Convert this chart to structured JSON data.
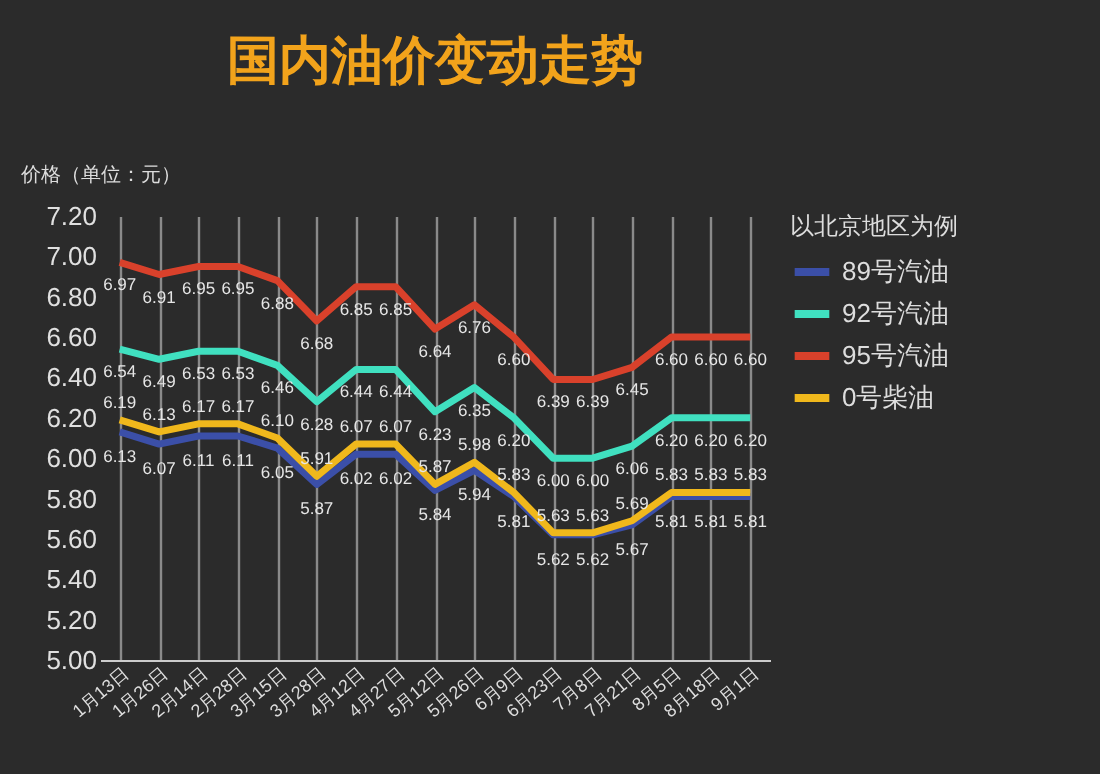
{
  "chart_data": {
    "type": "line",
    "title": "国内油价变动走势",
    "ylabel": "价格（单位：元）",
    "legend_title": "以北京地区为例",
    "categories": [
      "1月13日",
      "1月26日",
      "2月14日",
      "2月28日",
      "3月15日",
      "3月28日",
      "4月12日",
      "4月27日",
      "5月12日",
      "5月26日",
      "6月9日",
      "6月23日",
      "7月8日",
      "7月21日",
      "8月5日",
      "8月18日",
      "9月1日"
    ],
    "series": [
      {
        "name": "89号汽油",
        "color": "#3b4fa8",
        "values": [
          6.13,
          6.07,
          6.11,
          6.11,
          6.05,
          5.87,
          6.02,
          6.02,
          5.84,
          5.94,
          5.81,
          5.62,
          5.62,
          5.67,
          5.81,
          5.81,
          5.81
        ],
        "value_labels": [
          "6.13",
          "6.07",
          "6.11",
          "6.11",
          "6.05",
          "5.87",
          "6.02",
          "6.02",
          "5.84",
          "5.94",
          "5.81",
          "5.62",
          "5.62",
          "5.67",
          "5.81",
          "5.81",
          "5.81"
        ]
      },
      {
        "name": "92号汽油",
        "color": "#40e0c0",
        "values": [
          6.54,
          6.49,
          6.53,
          6.53,
          6.46,
          6.28,
          6.44,
          6.44,
          6.23,
          6.35,
          6.2,
          6.0,
          6.0,
          6.06,
          6.2,
          6.2,
          6.2
        ],
        "value_labels": [
          "6.54",
          "6.49",
          "6.53",
          "6.53",
          "6.46",
          "6.28",
          "6.44",
          "6.44",
          "6.23",
          "6.35",
          "6.20",
          "6.00",
          "6.00",
          "6.06",
          "6.20",
          "6.20",
          "6.20"
        ]
      },
      {
        "name": "95号汽油",
        "color": "#d9412b",
        "values": [
          6.97,
          6.91,
          6.95,
          6.95,
          6.88,
          6.68,
          6.85,
          6.85,
          6.64,
          6.76,
          6.6,
          6.39,
          6.39,
          6.45,
          6.6,
          6.6,
          6.6
        ],
        "value_labels": [
          "6.97",
          "6.91",
          "6.95",
          "6.95",
          "6.88",
          "6.68",
          "6.85",
          "6.85",
          "6.64",
          "6.76",
          "6.60",
          "6.39",
          "6.39",
          "6.45",
          "6.60",
          "6.60",
          "6.60"
        ]
      },
      {
        "name": "0号柴油",
        "color": "#f0b81c",
        "values": [
          6.19,
          6.13,
          6.17,
          6.17,
          6.1,
          5.91,
          6.07,
          6.07,
          5.87,
          5.98,
          5.83,
          5.63,
          5.63,
          5.69,
          5.83,
          5.83,
          5.83
        ],
        "value_labels": [
          "6.19",
          "6.13",
          "6.17",
          "6.17",
          "6.10",
          "5.91",
          "6.07",
          "6.07",
          "5.87",
          "5.98",
          "5.83",
          "5.63",
          "5.63",
          "5.69",
          "5.83",
          "5.83",
          "5.83"
        ]
      }
    ],
    "ylim": [
      5,
      7.2
    ],
    "yticks": [
      {
        "value": 5,
        "label": "5.00"
      },
      {
        "value": 5.2,
        "label": "5.20"
      },
      {
        "value": 5.4,
        "label": "5.40"
      },
      {
        "value": 5.6,
        "label": "5.60"
      },
      {
        "value": 5.8,
        "label": "5.80"
      },
      {
        "value": 6,
        "label": "6.00"
      },
      {
        "value": 6.2,
        "label": "6.20"
      },
      {
        "value": 6.4,
        "label": "6.40"
      },
      {
        "value": 6.6,
        "label": "6.60"
      },
      {
        "value": 6.8,
        "label": "6.80"
      },
      {
        "value": 7,
        "label": "7.00"
      },
      {
        "value": 7.2,
        "label": "7.20"
      }
    ],
    "grid": "x",
    "legend": "right",
    "marker": "none",
    "line_style": "solid"
  }
}
